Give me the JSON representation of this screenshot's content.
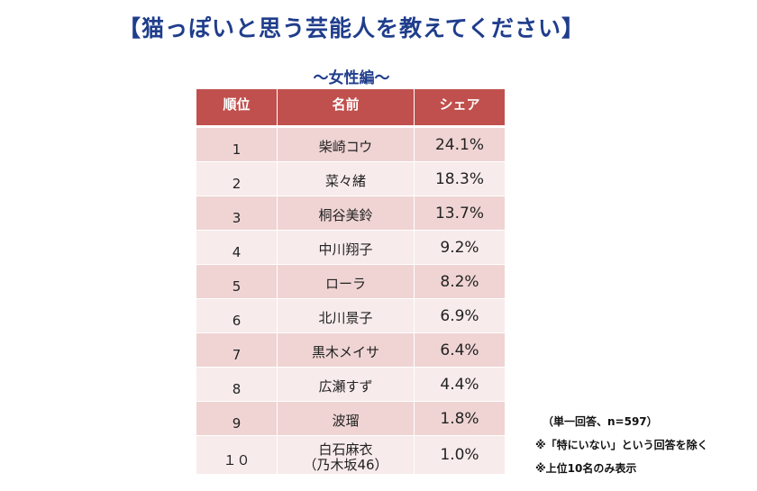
{
  "title": "【猫っぽいと思う芸能人を教えてください】",
  "subtitle": "～女性編～",
  "table": {
    "headers": [
      "順位",
      "名前",
      "シェア"
    ],
    "rows": [
      {
        "rank": "1",
        "name": [
          "柴崎コウ"
        ],
        "share": "24.1%"
      },
      {
        "rank": "2",
        "name": [
          "菜々緒"
        ],
        "share": "18.3%"
      },
      {
        "rank": "3",
        "name": [
          "桐谷美鈴"
        ],
        "share": "13.7%"
      },
      {
        "rank": "4",
        "name": [
          "中川翔子"
        ],
        "share": "9.2%"
      },
      {
        "rank": "5",
        "name": [
          "ローラ"
        ],
        "share": "8.2%"
      },
      {
        "rank": "6",
        "name": [
          "北川景子"
        ],
        "share": "6.9%"
      },
      {
        "rank": "7",
        "name": [
          "黒木メイサ"
        ],
        "share": "6.4%"
      },
      {
        "rank": "8",
        "name": [
          "広瀬すず"
        ],
        "share": "4.4%"
      },
      {
        "rank": "9",
        "name": [
          "波瑠"
        ],
        "share": "1.8%"
      },
      {
        "rank": "１０",
        "name": [
          "白石麻衣",
          "（乃木坂46）"
        ],
        "share": "1.0%"
      }
    ]
  },
  "notes": {
    "sample": "（単一回答、n=597）",
    "exclusion": "※「特にいない」という回答を除く",
    "top10": "※上位10名のみ表示"
  }
}
